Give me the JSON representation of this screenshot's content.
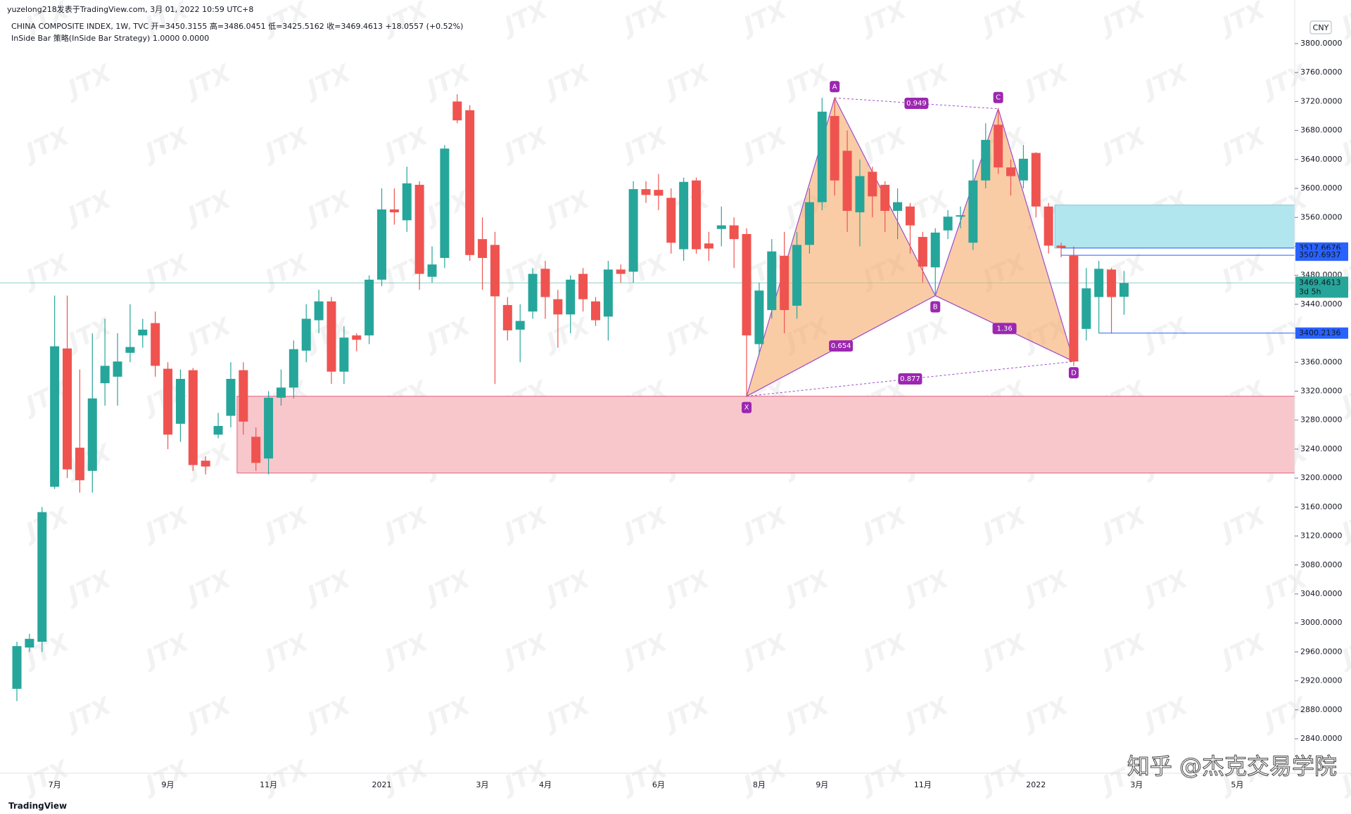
{
  "header": {
    "line1": "yuzelong218发表于TradingView.com,  3月 01, 2022 10:59 UTC+8",
    "line2": "CHINA COMPOSITE INDEX, 1W, TVC  开=3450.3155  高=3486.0451  低=3425.5162  收=3469.4613  +18.0557 (+0.52%)",
    "line3": "InSide Bar 策略(InSide Bar Strategy)  1.0000  0.0000",
    "currency": "CNY"
  },
  "footer": {
    "brand": "TradingView",
    "credit": "知乎 @杰克交易学院",
    "watermark": "JTX"
  },
  "chart_data": {
    "type": "candlestick",
    "up_color": "#26a69a",
    "down_color": "#ef5350",
    "categories": [
      null,
      null,
      null,
      "7月",
      null,
      null,
      null,
      null,
      null,
      null,
      null,
      null,
      "9月",
      null,
      null,
      null,
      null,
      null,
      null,
      null,
      "11月",
      null,
      null,
      null,
      null,
      null,
      null,
      null,
      null,
      "2021",
      null,
      null,
      null,
      null,
      null,
      null,
      null,
      "3月",
      null,
      null,
      null,
      null,
      "4月",
      null,
      null,
      null,
      null,
      null,
      null,
      null,
      null,
      "6月",
      null,
      null,
      null,
      null,
      null,
      null,
      null,
      "8月",
      null,
      null,
      null,
      null,
      "9月",
      null,
      null,
      null,
      null,
      null,
      null,
      null,
      "11月",
      null,
      null,
      null,
      null,
      null,
      null,
      null,
      null,
      "2022",
      null,
      null,
      null,
      null,
      null,
      null,
      null,
      "3月",
      null,
      null,
      null,
      null,
      null,
      null,
      null,
      "5月"
    ],
    "open": [
      2909,
      2966,
      2974,
      3188,
      3379,
      3242,
      3210,
      3331,
      3340,
      3373,
      3397,
      3414,
      3351,
      3275,
      3349,
      3224,
      3260,
      3286,
      3349,
      3257,
      3227,
      3311,
      3325,
      3376,
      3418,
      3444,
      3347,
      3397,
      3397,
      3474,
      3571,
      3556,
      3605,
      3478,
      3504,
      3720,
      3708,
      3530,
      3522,
      3439,
      3405,
      3430,
      3489,
      3447,
      3426,
      3482,
      3444,
      3423,
      3488,
      3485,
      3599,
      3598,
      3587,
      3516,
      3611,
      3524,
      3544,
      3549,
      3537,
      3385,
      3432,
      3507,
      3438,
      3522,
      3581,
      3700,
      3652,
      3567,
      3623,
      3605,
      3569,
      3575,
      3533,
      3491,
      3542,
      3561,
      3525,
      3611,
      3688,
      3629,
      3611,
      3649,
      3575,
      3521,
      3507,
      3406,
      3450,
      3488,
      3450.3155,
      null,
      null,
      null,
      null,
      null,
      null,
      null,
      null,
      null
    ],
    "high": [
      2974,
      2985,
      3160,
      3452,
      3452,
      3350,
      3400,
      3420,
      3400,
      3440,
      3420,
      3430,
      3360,
      3350,
      3352,
      3230,
      3290,
      3360,
      3360,
      3270,
      3320,
      3350,
      3390,
      3440,
      3460,
      3450,
      3410,
      3400,
      3480,
      3600,
      3600,
      3630,
      3610,
      3520,
      3660,
      3730,
      3715,
      3560,
      3540,
      3450,
      3440,
      3490,
      3500,
      3460,
      3480,
      3490,
      3450,
      3500,
      3495,
      3610,
      3610,
      3620,
      3600,
      3615,
      3615,
      3540,
      3575,
      3560,
      3545,
      3470,
      3530,
      3540,
      3540,
      3600,
      3725,
      3725,
      3680,
      3640,
      3630,
      3610,
      3600,
      3580,
      3540,
      3545,
      3570,
      3575,
      3640,
      3690,
      3710,
      3640,
      3660,
      3650,
      3580,
      3525,
      3520,
      3490,
      3500,
      3490,
      3486.0451,
      null,
      null,
      null,
      null,
      null,
      null,
      null,
      null,
      null
    ],
    "low": [
      2892,
      2960,
      2960,
      3185,
      3200,
      3180,
      3180,
      3300,
      3300,
      3360,
      3380,
      3340,
      3240,
      3250,
      3210,
      3205,
      3255,
      3270,
      3260,
      3210,
      3205,
      3300,
      3310,
      3360,
      3400,
      3330,
      3330,
      3375,
      3385,
      3465,
      3550,
      3540,
      3460,
      3470,
      3490,
      3690,
      3500,
      3460,
      3330,
      3390,
      3360,
      3420,
      3420,
      3380,
      3400,
      3430,
      3410,
      3390,
      3470,
      3470,
      3580,
      3570,
      3510,
      3500,
      3510,
      3500,
      3520,
      3490,
      3313,
      3370,
      3420,
      3400,
      3420,
      3510,
      3570,
      3590,
      3540,
      3520,
      3560,
      3540,
      3530,
      3510,
      3470,
      3452,
      3530,
      3545,
      3515,
      3600,
      3620,
      3590,
      3600,
      3560,
      3510,
      3505,
      3355,
      3390,
      3400,
      3400,
      3425.5162,
      null,
      null,
      null,
      null,
      null,
      null,
      null,
      null,
      null
    ],
    "close": [
      2968,
      2978,
      3153,
      3382,
      3212,
      3197,
      3310,
      3355,
      3361,
      3381,
      3405,
      3355,
      3260,
      3337,
      3218,
      3216,
      3272,
      3337,
      3278,
      3221,
      3311,
      3325,
      3378,
      3420,
      3444,
      3347,
      3394,
      3391,
      3474,
      3571,
      3567,
      3607,
      3482,
      3495,
      3655,
      3694,
      3508,
      3504,
      3451,
      3404,
      3417,
      3482,
      3450,
      3426,
      3474,
      3447,
      3418,
      3488,
      3482,
      3599,
      3591,
      3590,
      3525,
      3609,
      3516,
      3517,
      3549,
      3530,
      3397,
      3459,
      3513,
      3432,
      3522,
      3581,
      3706,
      3611,
      3569,
      3617,
      3589,
      3569,
      3581,
      3549,
      3492,
      3539,
      3561,
      3563,
      3611,
      3667,
      3629,
      3617,
      3641,
      3575,
      3521,
      3518,
      3361,
      3462,
      3489,
      3450,
      3469.4613,
      null,
      null,
      null,
      null,
      null,
      null,
      null,
      null,
      null
    ],
    "ylim": [
      2800,
      3830
    ],
    "yticks": [
      {
        "value": 2840,
        "label": "2840.0000"
      },
      {
        "value": 2880,
        "label": "2880.0000"
      },
      {
        "value": 2920,
        "label": "2920.0000"
      },
      {
        "value": 2960,
        "label": "2960.0000"
      },
      {
        "value": 3000,
        "label": "3000.0000"
      },
      {
        "value": 3040,
        "label": "3040.0000"
      },
      {
        "value": 3080,
        "label": "3080.0000"
      },
      {
        "value": 3120,
        "label": "3120.0000"
      },
      {
        "value": 3160,
        "label": "3160.0000"
      },
      {
        "value": 3200,
        "label": "3200.0000"
      },
      {
        "value": 3240,
        "label": "3240.0000"
      },
      {
        "value": 3280,
        "label": "3280.0000"
      },
      {
        "value": 3320,
        "label": "3320.0000"
      },
      {
        "value": 3360,
        "label": "3360.0000"
      },
      {
        "value": 3400,
        "label": "3400.0000"
      },
      {
        "value": 3440,
        "label": "3440.0000"
      },
      {
        "value": 3480,
        "label": "3480.0000"
      },
      {
        "value": 3520,
        "label": "3520.0000"
      },
      {
        "value": 3560,
        "label": "3560.0000"
      },
      {
        "value": 3600,
        "label": "3600.0000"
      },
      {
        "value": 3640,
        "label": "3640.0000"
      },
      {
        "value": 3680,
        "label": "3680.0000"
      },
      {
        "value": 3720,
        "label": "3720.0000"
      },
      {
        "value": 3760,
        "label": "3760.0000"
      },
      {
        "value": 3800,
        "label": "3800.0000"
      }
    ],
    "pattern": {
      "color": "#f5a35b",
      "points": [
        {
          "label": "X",
          "x": 58,
          "y": 3313
        },
        {
          "label": "A",
          "x": 65,
          "y": 3725
        },
        {
          "label": "B",
          "x": 73,
          "y": 3452
        },
        {
          "label": "C",
          "x": 78,
          "y": 3710
        },
        {
          "label": "D",
          "x": 84,
          "y": 3361
        }
      ],
      "ratios": [
        {
          "from": 0,
          "to": 2,
          "value": 0.654
        },
        {
          "from": 1,
          "to": 3,
          "value": 0.949
        },
        {
          "from": 2,
          "to": 4,
          "value": 1.36
        },
        {
          "from": 0,
          "to": 4,
          "value": 0.877
        }
      ]
    },
    "zones": [
      {
        "start": 18,
        "top": 3313,
        "bottom": 3207,
        "color": "#f8c7cc"
      },
      {
        "start": 83,
        "top": 3577,
        "bottom": 3517.6676,
        "color": "#b2e6ee"
      }
    ],
    "price_lines": [
      {
        "start": 83,
        "value": 3517.6676,
        "label": "3517.6676",
        "color": "#2962ff"
      },
      {
        "start": 83,
        "value": 3507.6937,
        "label": "3507.6937",
        "color": "#2962ff"
      },
      {
        "start": 86,
        "value": 3400.2136,
        "label": "3400.2136",
        "color": "#2962ff"
      }
    ],
    "last_price": {
      "value": 3469.4613,
      "label": "3469.4613",
      "countdown": "3d 5h",
      "color": "#26a69a"
    }
  }
}
